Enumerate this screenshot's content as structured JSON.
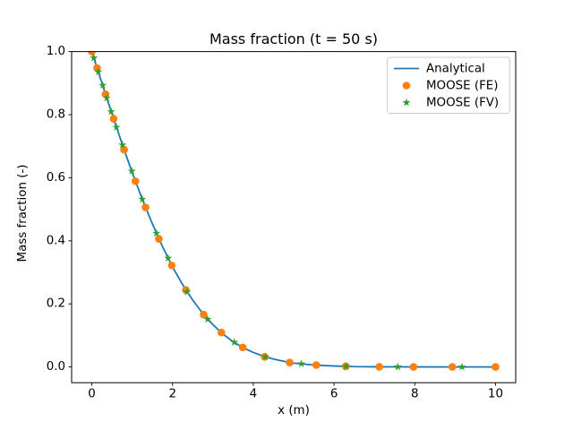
{
  "chart_data": {
    "type": "line",
    "title": "Mass fraction (t = 50 s)",
    "xlabel": "x (m)",
    "ylabel": "Mass fraction (-)",
    "xlim": [
      -0.5,
      10.5
    ],
    "ylim": [
      -0.05,
      1.0
    ],
    "xticks": [
      0,
      2,
      4,
      6,
      8,
      10
    ],
    "xtick_labels": [
      "0",
      "2",
      "4",
      "6",
      "8",
      "10"
    ],
    "yticks": [
      0.0,
      0.2,
      0.4,
      0.6,
      0.8,
      1.0
    ],
    "ytick_labels": [
      "0.0",
      "0.2",
      "0.4",
      "0.6",
      "0.8",
      "1.0"
    ],
    "grid": false,
    "legend_position": "upper right",
    "colors": {
      "analytical": "#1f77b4",
      "moose_fe": "#ff7f0e",
      "moose_fv": "#2ca02c",
      "legend_border": "#cccccc",
      "spines": "#000000"
    },
    "series": [
      {
        "name": "Analytical",
        "type": "line",
        "color": "#1f77b4",
        "x": [
          0,
          0.125,
          0.25,
          0.375,
          0.5,
          0.625,
          0.75,
          0.875,
          1.0,
          1.25,
          1.5,
          1.75,
          2.0,
          2.25,
          2.5,
          2.75,
          3.0,
          3.25,
          3.5,
          3.75,
          4.0,
          4.25,
          4.5,
          4.75,
          5.0,
          5.5,
          6.0,
          6.5,
          7.0,
          7.5,
          8.0,
          9.0,
          10.0
        ],
        "y": [
          1.0,
          0.95,
          0.9005,
          0.851,
          0.803,
          0.755,
          0.708,
          0.662,
          0.617,
          0.532,
          0.454,
          0.382,
          0.317,
          0.261,
          0.212,
          0.169,
          0.134,
          0.104,
          0.08,
          0.061,
          0.046,
          0.034,
          0.025,
          0.018,
          0.012,
          0.006,
          0.003,
          0.001,
          0.0005,
          0.0002,
          0.0001,
          0.0,
          0.0
        ]
      },
      {
        "name": "MOOSE (FE)",
        "type": "scatter",
        "marker": "circle",
        "color": "#ff7f0e",
        "x": [
          0.0,
          0.13,
          0.34,
          0.54,
          0.8,
          1.08,
          1.33,
          1.66,
          1.98,
          2.33,
          2.77,
          3.21,
          3.74,
          4.28,
          4.9,
          5.56,
          6.29,
          7.12,
          7.97,
          8.93,
          10.0
        ],
        "y": [
          1.0,
          0.948,
          0.865,
          0.787,
          0.689,
          0.589,
          0.506,
          0.406,
          0.322,
          0.244,
          0.166,
          0.109,
          0.062,
          0.032,
          0.014,
          0.006,
          0.002,
          0.0004,
          0.0001,
          0.0,
          0.0
        ]
      },
      {
        "name": "MOOSE (FV)",
        "type": "scatter",
        "marker": "star",
        "color": "#2ca02c",
        "x": [
          0.05,
          0.16,
          0.27,
          0.37,
          0.48,
          0.61,
          0.76,
          0.99,
          1.25,
          1.6,
          1.89,
          2.36,
          2.87,
          3.53,
          4.3,
          5.19,
          6.3,
          7.58,
          9.17
        ],
        "y": [
          0.98,
          0.936,
          0.893,
          0.853,
          0.81,
          0.76,
          0.704,
          0.621,
          0.532,
          0.424,
          0.345,
          0.238,
          0.151,
          0.078,
          0.032,
          0.01,
          0.002,
          0.0002,
          0.0
        ]
      }
    ]
  }
}
